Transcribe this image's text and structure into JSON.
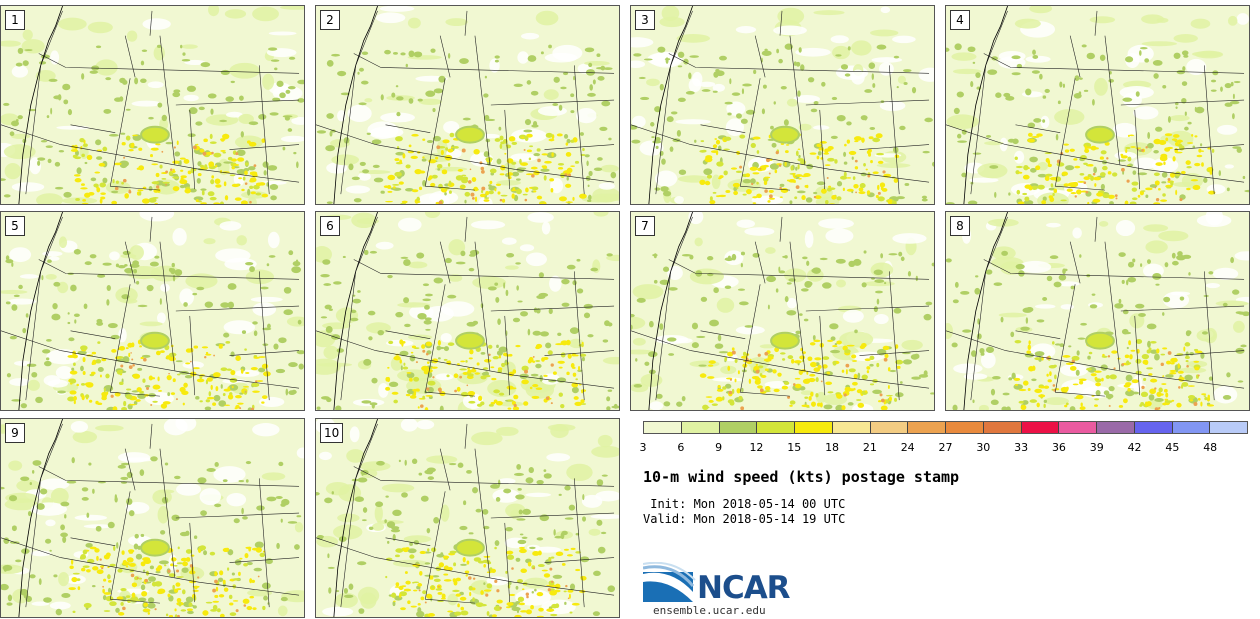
{
  "panels": [
    {
      "label": "1"
    },
    {
      "label": "2"
    },
    {
      "label": "3"
    },
    {
      "label": "4"
    },
    {
      "label": "5"
    },
    {
      "label": "6"
    },
    {
      "label": "7"
    },
    {
      "label": "8"
    },
    {
      "label": "9"
    },
    {
      "label": "10"
    }
  ],
  "colorbar": {
    "colors": [
      "#f1f8d2",
      "#e0f2a3",
      "#b0cf64",
      "#d3e53a",
      "#f7ea0e",
      "#f8e894",
      "#f3cc83",
      "#eca250",
      "#e98a3d",
      "#e0773e",
      "#ec1146",
      "#ea5ba0",
      "#9a6aa8",
      "#6664ee",
      "#8296f3",
      "#b9cbf8"
    ],
    "ticks": [
      "3",
      "6",
      "9",
      "12",
      "15",
      "18",
      "21",
      "24",
      "27",
      "30",
      "33",
      "36",
      "39",
      "42",
      "45",
      "48"
    ]
  },
  "title": "10-m wind speed (kts) postage stamp",
  "init_line": " Init: Mon 2018-05-14 00 UTC",
  "valid_line": "Valid: Mon 2018-05-14 19 UTC",
  "logo": {
    "text": "NCAR",
    "url": "ensemble.ucar.edu"
  }
}
